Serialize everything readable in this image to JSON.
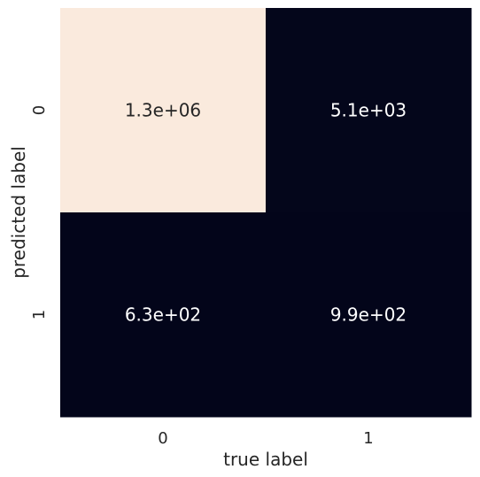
{
  "chart_data": {
    "type": "heatmap",
    "xlabel": "true label",
    "ylabel": "predicted label",
    "x_categories": [
      "0",
      "1"
    ],
    "y_categories": [
      "0",
      "1"
    ],
    "values": [
      [
        1300000,
        5100
      ],
      [
        630,
        990
      ]
    ],
    "annotations": [
      [
        "1.3e+06",
        "5.1e+03"
      ],
      [
        "6.3e+02",
        "9.9e+02"
      ]
    ],
    "colorbar": false,
    "colors": {
      "high": "#faeadd",
      "low": "#03051a",
      "text_on_light": "#262626",
      "text_on_dark": "#ffffff",
      "axis_text": "#262626"
    }
  }
}
